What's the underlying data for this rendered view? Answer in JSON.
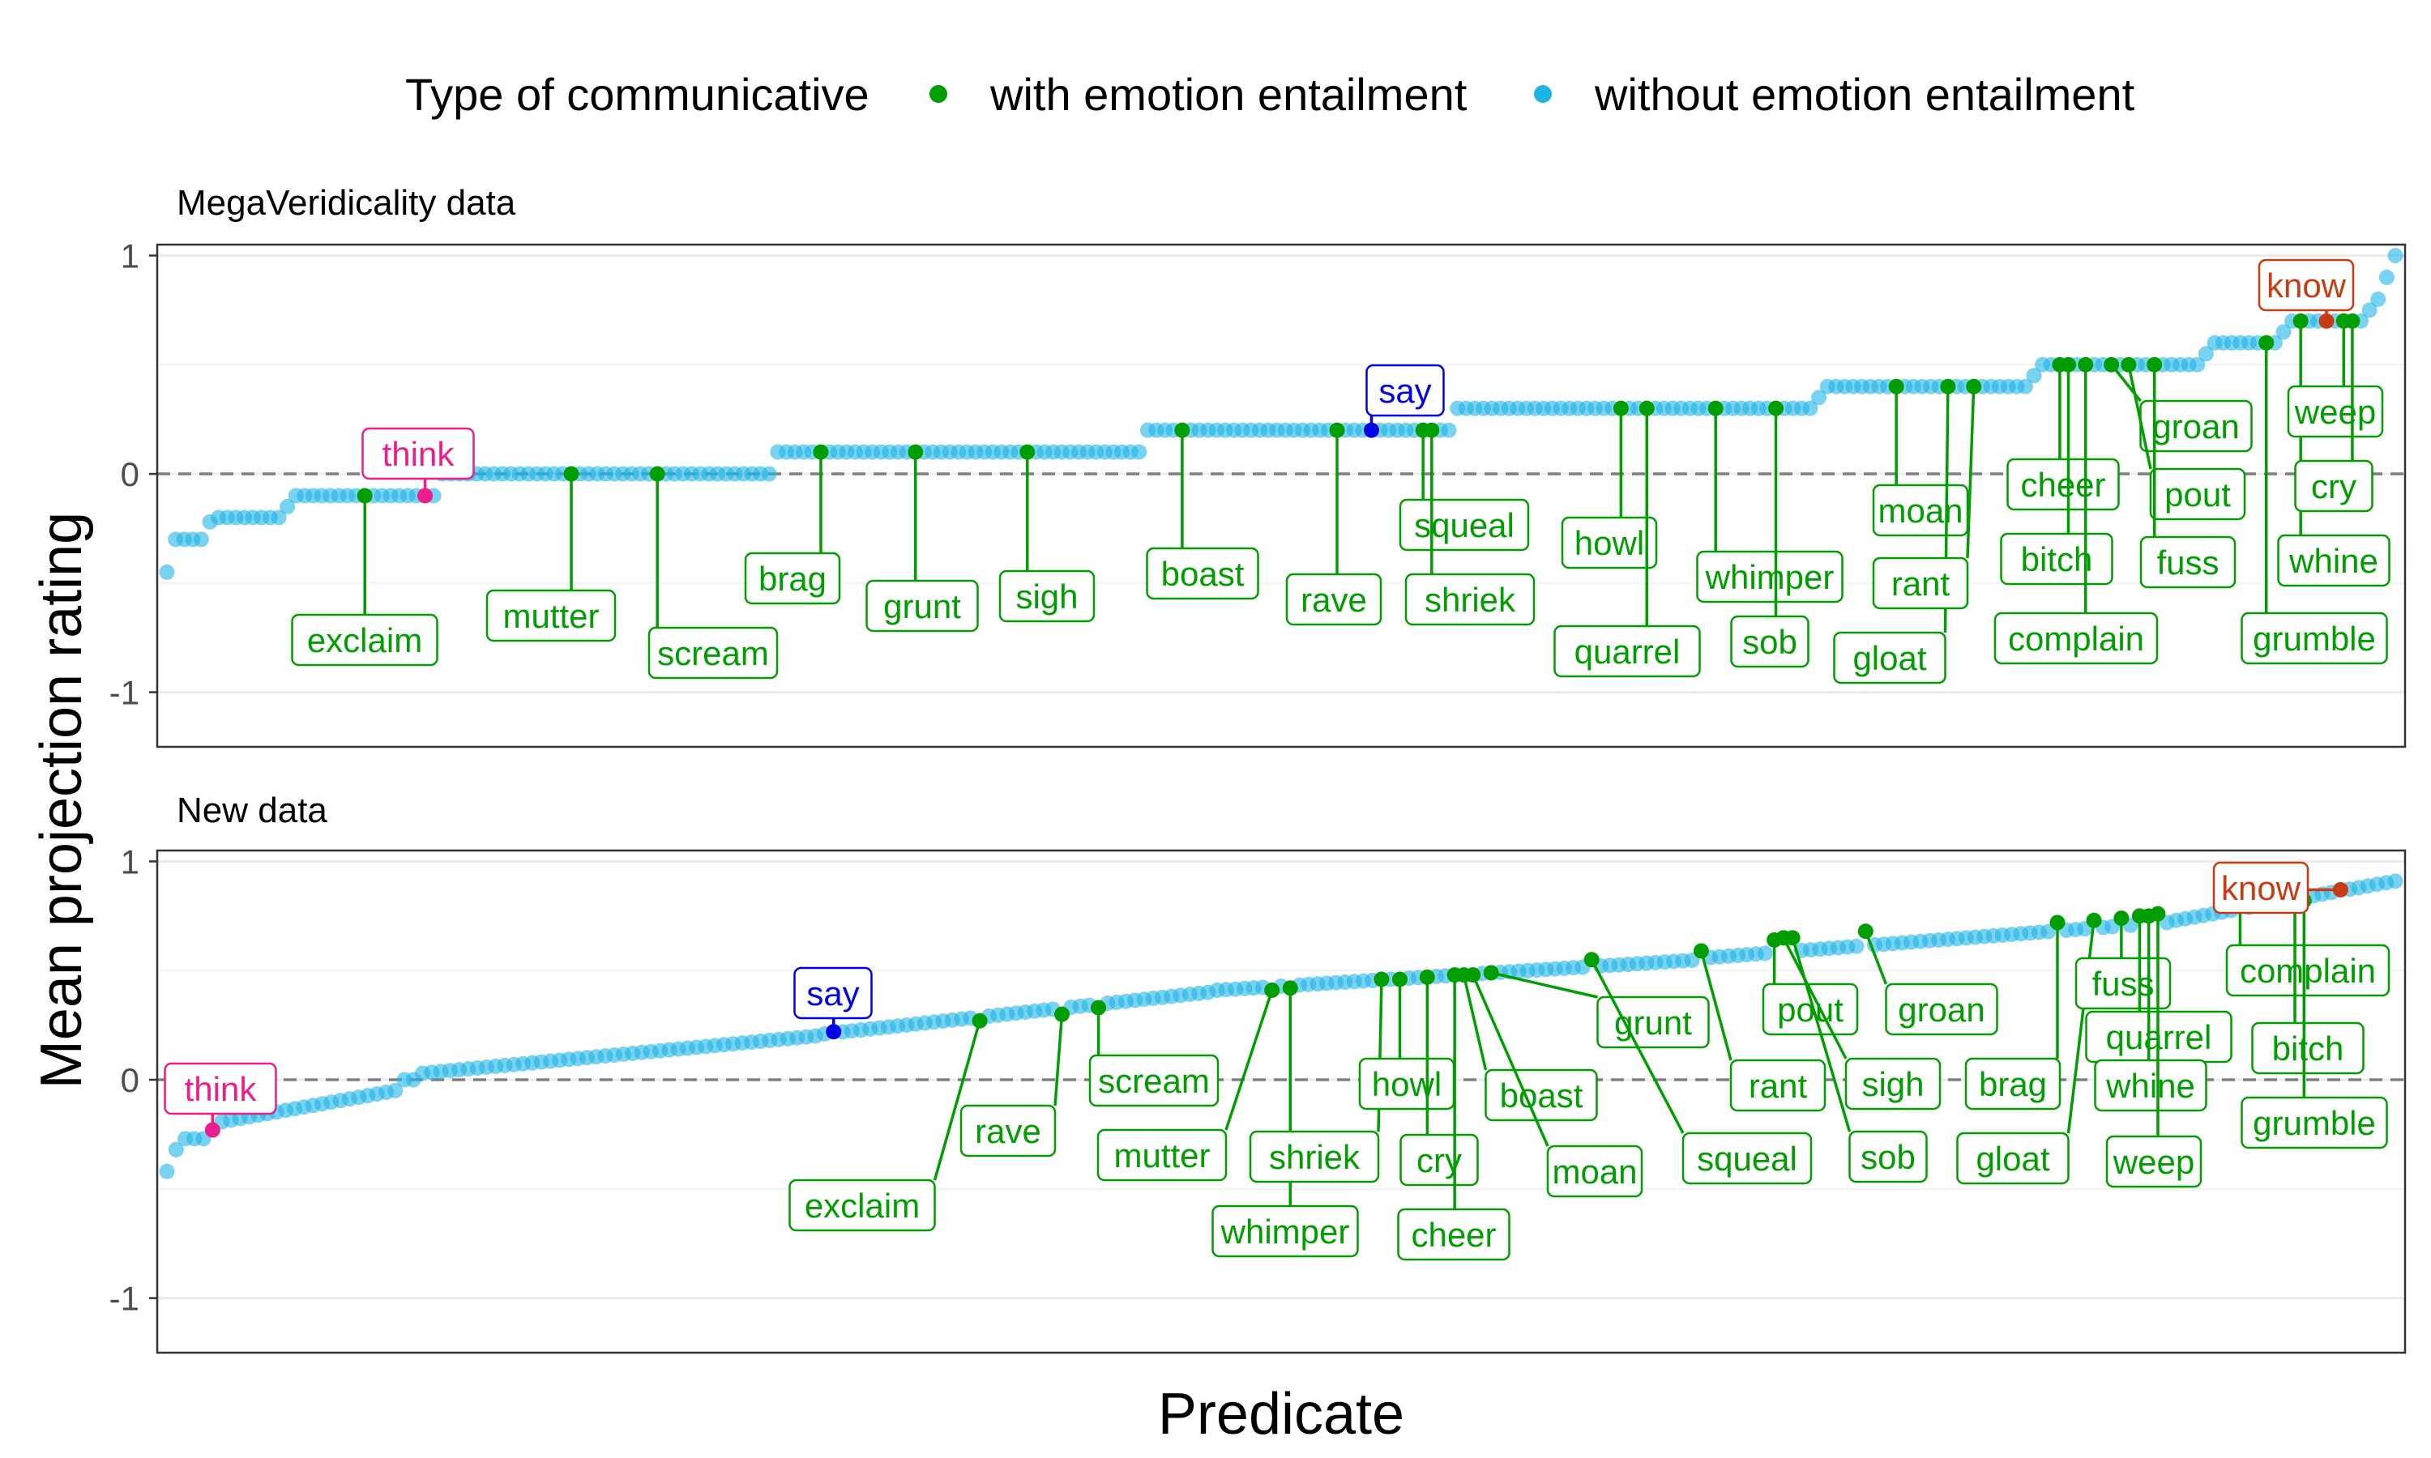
{
  "chart_data": {
    "type": "scatter",
    "ylabel": "Mean projection rating",
    "xlabel": "Predicate",
    "ylim": [
      -1.2,
      1.0
    ],
    "yticks": [
      -1,
      0,
      1
    ],
    "reference_line_y": 0,
    "grid": true,
    "legend": {
      "title": "Type of communicative",
      "position": "top",
      "entries": [
        {
          "label": "with emotion entailment",
          "color": "#009E00"
        },
        {
          "label": "without emotion entailment",
          "color": "#1EB4E6"
        }
      ]
    },
    "label_colors": {
      "emotion": "#009E00",
      "think": "#EC1E8C",
      "say": "#0000E6",
      "know": "#C83C14"
    },
    "panels": [
      {
        "title": "MegaVeridicality data",
        "n_points": 260,
        "segments": [
          {
            "n": 1,
            "value": -0.45
          },
          {
            "n": 4,
            "value": -0.3
          },
          {
            "n": 1,
            "value": -0.22
          },
          {
            "n": 8,
            "value": -0.2
          },
          {
            "n": 1,
            "value": -0.15
          },
          {
            "n": 17,
            "value": -0.1
          },
          {
            "n": 39,
            "value": 0
          },
          {
            "n": 43,
            "value": 0.1
          },
          {
            "n": 36,
            "value": 0.2
          },
          {
            "n": 42,
            "value": 0.3
          },
          {
            "n": 1,
            "value": 0.35
          },
          {
            "n": 24,
            "value": 0.4
          },
          {
            "n": 1,
            "value": 0.45
          },
          {
            "n": 19,
            "value": 0.5
          },
          {
            "n": 1,
            "value": 0.55
          },
          {
            "n": 8,
            "value": 0.6
          },
          {
            "n": 1,
            "value": 0.65
          },
          {
            "n": 9,
            "value": 0.7
          },
          {
            "n": 1,
            "value": 0.75
          },
          {
            "n": 1,
            "value": 0.8
          },
          {
            "n": 1,
            "value": 0.9
          },
          {
            "n": 1,
            "value": 1.0
          }
        ],
        "highlighted": [
          {
            "label": "exclaim",
            "group": "emotion",
            "x": 23,
            "y": -0.1
          },
          {
            "label": "think",
            "group": "think",
            "x": 30,
            "y": -0.1
          },
          {
            "label": "mutter",
            "group": "emotion",
            "x": 47,
            "y": 0
          },
          {
            "label": "scream",
            "group": "emotion",
            "x": 57,
            "y": 0
          },
          {
            "label": "brag",
            "group": "emotion",
            "x": 76,
            "y": 0.1
          },
          {
            "label": "grunt",
            "group": "emotion",
            "x": 87,
            "y": 0.1
          },
          {
            "label": "sigh",
            "group": "emotion",
            "x": 100,
            "y": 0.1
          },
          {
            "label": "boast",
            "group": "emotion",
            "x": 118,
            "y": 0.2
          },
          {
            "label": "rave",
            "group": "emotion",
            "x": 136,
            "y": 0.2
          },
          {
            "label": "say",
            "group": "say",
            "x": 140,
            "y": 0.2
          },
          {
            "label": "squeal",
            "group": "emotion",
            "x": 146,
            "y": 0.2
          },
          {
            "label": "shriek",
            "group": "emotion",
            "x": 147,
            "y": 0.2
          },
          {
            "label": "howl",
            "group": "emotion",
            "x": 169,
            "y": 0.3
          },
          {
            "label": "quarrel",
            "group": "emotion",
            "x": 172,
            "y": 0.3
          },
          {
            "label": "whimper",
            "group": "emotion",
            "x": 180,
            "y": 0.3
          },
          {
            "label": "sob",
            "group": "emotion",
            "x": 187,
            "y": 0.3
          },
          {
            "label": "moan",
            "group": "emotion",
            "x": 201,
            "y": 0.4
          },
          {
            "label": "gloat",
            "group": "emotion",
            "x": 207,
            "y": 0.4
          },
          {
            "label": "rant",
            "group": "emotion",
            "x": 210,
            "y": 0.4
          },
          {
            "label": "cheer",
            "group": "emotion",
            "x": 220,
            "y": 0.5
          },
          {
            "label": "bitch",
            "group": "emotion",
            "x": 221,
            "y": 0.5
          },
          {
            "label": "complain",
            "group": "emotion",
            "x": 223,
            "y": 0.5
          },
          {
            "label": "groan",
            "group": "emotion",
            "x": 226,
            "y": 0.5
          },
          {
            "label": "pout",
            "group": "emotion",
            "x": 228,
            "y": 0.5
          },
          {
            "label": "fuss",
            "group": "emotion",
            "x": 231,
            "y": 0.5
          },
          {
            "label": "grumble",
            "group": "emotion",
            "x": 244,
            "y": 0.6
          },
          {
            "label": "whine",
            "group": "emotion",
            "x": 248,
            "y": 0.7
          },
          {
            "label": "know",
            "group": "know",
            "x": 251,
            "y": 0.7
          },
          {
            "label": "weep",
            "group": "emotion",
            "x": 253,
            "y": 0.7
          },
          {
            "label": "cry",
            "group": "emotion",
            "x": 254,
            "y": 0.7
          }
        ]
      },
      {
        "title": "New data",
        "n_points": 245,
        "segments": [
          {
            "n": 1,
            "value": -0.42
          },
          {
            "n": 1,
            "value": -0.32
          },
          {
            "n": 3,
            "value": -0.27
          },
          {
            "n": 21,
            "value": -0.2,
            "to": -0.05
          },
          {
            "n": 2,
            "value": 0.0
          },
          {
            "n": 44,
            "value": 0.03,
            "to": 0.2
          },
          {
            "n": 43,
            "value": 0.21,
            "to": 0.4
          },
          {
            "n": 54,
            "value": 0.41,
            "to": 0.55
          },
          {
            "n": 51,
            "value": 0.56,
            "to": 0.72
          },
          {
            "n": 25,
            "value": 0.73,
            "to": 0.91
          }
        ],
        "highlighted": [
          {
            "label": "think",
            "group": "think",
            "x": 5,
            "y": -0.23
          },
          {
            "label": "say",
            "group": "say",
            "x": 73,
            "y": 0.22
          },
          {
            "label": "exclaim",
            "group": "emotion",
            "x": 89,
            "y": 0.27
          },
          {
            "label": "rave",
            "group": "emotion",
            "x": 98,
            "y": 0.3
          },
          {
            "label": "scream",
            "group": "emotion",
            "x": 102,
            "y": 0.33
          },
          {
            "label": "mutter",
            "group": "emotion",
            "x": 121,
            "y": 0.41
          },
          {
            "label": "whimper",
            "group": "emotion",
            "x": 123,
            "y": 0.42
          },
          {
            "label": "shriek",
            "group": "emotion",
            "x": 133,
            "y": 0.46
          },
          {
            "label": "howl",
            "group": "emotion",
            "x": 135,
            "y": 0.46
          },
          {
            "label": "cry",
            "group": "emotion",
            "x": 138,
            "y": 0.47
          },
          {
            "label": "cheer",
            "group": "emotion",
            "x": 141,
            "y": 0.48
          },
          {
            "label": "boast",
            "group": "emotion",
            "x": 142,
            "y": 0.48
          },
          {
            "label": "moan",
            "group": "emotion",
            "x": 143,
            "y": 0.48
          },
          {
            "label": "grunt",
            "group": "emotion",
            "x": 145,
            "y": 0.49
          },
          {
            "label": "squeal",
            "group": "emotion",
            "x": 156,
            "y": 0.55
          },
          {
            "label": "rant",
            "group": "emotion",
            "x": 168,
            "y": 0.59
          },
          {
            "label": "pout",
            "group": "emotion",
            "x": 176,
            "y": 0.64
          },
          {
            "label": "sigh",
            "group": "emotion",
            "x": 177,
            "y": 0.65
          },
          {
            "label": "sob",
            "group": "emotion",
            "x": 178,
            "y": 0.65
          },
          {
            "label": "groan",
            "group": "emotion",
            "x": 186,
            "y": 0.68
          },
          {
            "label": "brag",
            "group": "emotion",
            "x": 207,
            "y": 0.72
          },
          {
            "label": "gloat",
            "group": "emotion",
            "x": 211,
            "y": 0.73
          },
          {
            "label": "fuss",
            "group": "emotion",
            "x": 214,
            "y": 0.74
          },
          {
            "label": "quarrel",
            "group": "emotion",
            "x": 216,
            "y": 0.75
          },
          {
            "label": "whine",
            "group": "emotion",
            "x": 217,
            "y": 0.75
          },
          {
            "label": "weep",
            "group": "emotion",
            "x": 218,
            "y": 0.76
          },
          {
            "label": "complain",
            "group": "emotion",
            "x": 227,
            "y": 0.8
          },
          {
            "label": "bitch",
            "group": "emotion",
            "x": 233,
            "y": 0.82
          },
          {
            "label": "grumble",
            "group": "emotion",
            "x": 234,
            "y": 0.82
          },
          {
            "label": "know",
            "group": "know",
            "x": 238,
            "y": 0.87
          }
        ]
      }
    ]
  }
}
